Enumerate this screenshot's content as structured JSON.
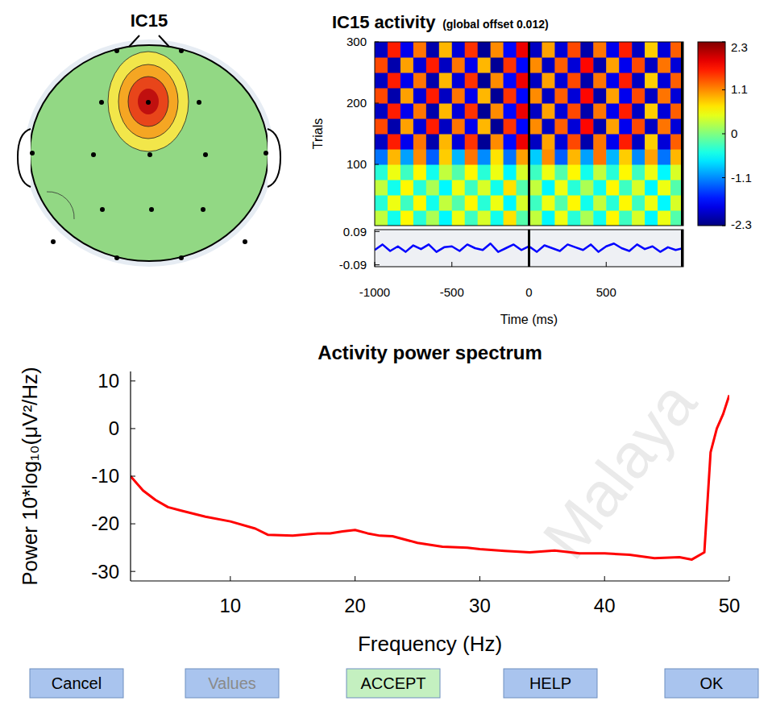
{
  "chart_data": [
    {
      "type": "topoplot",
      "title": "IC15"
    },
    {
      "type": "heatmap",
      "title": "IC15 activity",
      "subtitle": "(global offset 0.012)",
      "y_label": "Trials",
      "xlim": [
        -1000,
        1000
      ],
      "ylim": [
        0,
        300
      ],
      "yticks": [
        100,
        200,
        300
      ],
      "tick_labels": "y",
      "event_lines": [
        0,
        1000
      ],
      "color_range": [
        -2.3,
        2.3
      ],
      "color_ticks": [
        2.3,
        1.1,
        0,
        -1.1,
        -2.3
      ],
      "cells": [
        [
          0.3,
          -0.5,
          0.6,
          -0.4,
          0.2,
          -0.6,
          0.5,
          -0.3,
          0.4,
          -0.5,
          0.7,
          -0.2,
          0.3,
          -0.6,
          0.5,
          -0.4,
          0.2,
          -0.5,
          0.6,
          -0.3,
          0.4,
          -0.6,
          0.5,
          -0.2
        ],
        [
          -0.4,
          0.5,
          -0.3,
          0.6,
          -0.5,
          0.3,
          -0.2,
          0.6,
          -0.4,
          0.5,
          -0.6,
          0.4,
          -0.3,
          0.5,
          -0.2,
          0.6,
          -0.5,
          0.3,
          -0.4,
          0.6,
          -0.3,
          0.5,
          -0.6,
          0.4
        ],
        [
          0.3,
          -0.5,
          0.6,
          -0.4,
          0.2,
          -0.6,
          0.5,
          -0.3,
          0.4,
          -0.5,
          0.7,
          -0.2,
          0.3,
          -0.6,
          0.5,
          -0.4,
          0.2,
          -0.5,
          0.6,
          -0.3,
          0.4,
          -0.6,
          0.5,
          -0.2
        ],
        [
          -0.4,
          0.5,
          -0.3,
          0.6,
          -0.5,
          0.3,
          -0.2,
          0.6,
          -0.4,
          0.5,
          -0.6,
          0.4,
          -0.3,
          0.5,
          -0.2,
          0.6,
          -0.5,
          0.3,
          -0.4,
          0.6,
          -0.3,
          0.5,
          -0.6,
          0.4
        ],
        [
          -1.2,
          0.9,
          -1.0,
          1.1,
          -1.3,
          0.8,
          -0.9,
          1.2,
          -1.1,
          0.7,
          -1.2,
          1.0,
          -0.8,
          1.1,
          -1.3,
          0.9,
          -1.0,
          1.2,
          -0.9,
          0.8,
          -1.1,
          1.0,
          -1.2,
          0.9
        ],
        [
          -2.0,
          1.6,
          -1.8,
          1.2,
          -2.1,
          0.9,
          -1.9,
          1.5,
          -2.2,
          1.1,
          -1.7,
          1.8,
          -2.0,
          1.0,
          -1.9,
          1.4,
          -2.1,
          1.2,
          -1.8,
          1.6,
          -2.0,
          0.8,
          -1.9,
          1.3
        ],
        [
          1.4,
          -2.1,
          1.0,
          -1.9,
          1.6,
          -2.0,
          1.2,
          -1.8,
          0.9,
          -2.2,
          1.5,
          -1.7,
          1.1,
          -2.0,
          1.3,
          -1.9,
          1.7,
          -2.1,
          1.0,
          -1.8,
          1.4,
          -2.0,
          1.2,
          -1.9
        ],
        [
          -2.0,
          1.6,
          -1.8,
          1.2,
          -2.1,
          0.9,
          -1.9,
          1.5,
          -2.2,
          1.1,
          -1.7,
          1.8,
          -2.0,
          1.0,
          -1.9,
          1.4,
          -2.1,
          1.2,
          -1.8,
          1.6,
          -2.0,
          0.8,
          -1.9,
          1.3
        ],
        [
          1.4,
          -2.1,
          1.0,
          -1.9,
          1.6,
          -2.0,
          1.2,
          -1.8,
          0.9,
          -2.2,
          1.5,
          -1.7,
          1.1,
          -2.0,
          1.3,
          -1.9,
          1.7,
          -2.1,
          1.0,
          -1.8,
          1.4,
          -2.0,
          1.2,
          -1.9
        ],
        [
          -2.0,
          1.6,
          -1.8,
          1.2,
          -2.1,
          0.9,
          -1.9,
          1.5,
          -2.2,
          1.1,
          -1.7,
          1.8,
          -2.0,
          1.0,
          -1.9,
          1.4,
          -2.1,
          1.2,
          -1.8,
          1.6,
          -2.0,
          0.8,
          -1.9,
          1.3
        ],
        [
          1.4,
          -2.1,
          1.0,
          -1.9,
          1.6,
          -2.0,
          1.2,
          -1.8,
          0.9,
          -2.2,
          1.5,
          -1.7,
          1.1,
          -2.0,
          1.3,
          -1.9,
          1.7,
          -2.1,
          1.0,
          -1.8,
          1.4,
          -2.0,
          1.2,
          -1.9
        ],
        [
          -2.0,
          1.6,
          -1.8,
          1.2,
          -2.1,
          0.9,
          -1.9,
          1.5,
          -2.2,
          1.1,
          -1.7,
          1.8,
          -2.0,
          1.0,
          -1.9,
          1.4,
          -2.1,
          1.2,
          -1.8,
          1.6,
          -2.0,
          0.8,
          -1.9,
          1.3
        ]
      ]
    },
    {
      "type": "line",
      "x_label": "Time (ms)",
      "x": [
        -1000,
        -950,
        -900,
        -850,
        -800,
        -750,
        -700,
        -650,
        -600,
        -550,
        -500,
        -450,
        -400,
        -350,
        -300,
        -250,
        -200,
        -150,
        -100,
        -50,
        0,
        50,
        100,
        150,
        200,
        250,
        300,
        350,
        400,
        450,
        500,
        550,
        600,
        650,
        700,
        750,
        800,
        850,
        900,
        950,
        1000
      ],
      "series": [
        {
          "color": "#0000ff",
          "values": [
            -0.01,
            0.02,
            -0.015,
            0.01,
            -0.02,
            0.015,
            -0.005,
            0.02,
            -0.02,
            0.005,
            0.01,
            -0.015,
            0.02,
            0.0,
            -0.01,
            0.025,
            -0.02,
            0.0,
            0.02,
            -0.01,
            0.01,
            -0.02,
            0.015,
            0.0,
            -0.015,
            0.02,
            0.005,
            -0.01,
            0.02,
            -0.02,
            0.01,
            0.025,
            0.0,
            -0.015,
            0.02,
            -0.005,
            0.01,
            -0.02,
            0.005,
            -0.01,
            0.0
          ]
        }
      ],
      "xlim": [
        -1000,
        1000
      ],
      "ylim": [
        -0.1,
        0.1
      ],
      "xticks": [
        -1000,
        -500,
        0,
        500
      ],
      "yticks": [
        -0.09,
        0.09
      ],
      "event_lines": [
        0,
        1000
      ]
    },
    {
      "type": "line",
      "title": "Activity power spectrum",
      "x_label": "Frequency (Hz)",
      "y_label": "Power 10*log₁₀(μV²/Hz)",
      "x": [
        2,
        3,
        4,
        5,
        6,
        8,
        10,
        12,
        13,
        15,
        17,
        18,
        19,
        20,
        21,
        22,
        23,
        25,
        27,
        29,
        30,
        32,
        34,
        36,
        38,
        40,
        42,
        44,
        46,
        47,
        48,
        48.5,
        49,
        49.5,
        50
      ],
      "series": [
        {
          "color": "#ff0000",
          "values": [
            -10,
            -13,
            -15,
            -16.5,
            -17.2,
            -18.5,
            -19.5,
            -21,
            -22.3,
            -22.5,
            -22,
            -22,
            -21.6,
            -21.3,
            -22,
            -22.5,
            -22.6,
            -24,
            -24.8,
            -25,
            -25.3,
            -25.7,
            -26,
            -25.6,
            -26.2,
            -26.2,
            -26.5,
            -27.2,
            -27,
            -27.5,
            -26,
            -5,
            0,
            3,
            7
          ]
        }
      ],
      "xlim": [
        2,
        50
      ],
      "ylim": [
        -32,
        12
      ],
      "xticks": [
        10,
        20,
        30,
        40,
        50
      ],
      "yticks": [
        -30,
        -20,
        -10,
        0,
        10
      ]
    }
  ],
  "buttons": [
    {
      "label": "Cancel",
      "enabled": true,
      "color": "#a9c4ee"
    },
    {
      "label": "Values",
      "enabled": false,
      "color": "#a9c4ee"
    },
    {
      "label": "ACCEPT",
      "enabled": true,
      "color": "#c4f0c0"
    },
    {
      "label": "HELP",
      "enabled": true,
      "color": "#a9c4ee"
    },
    {
      "label": "OK",
      "enabled": true,
      "color": "#a9c4ee"
    }
  ],
  "watermark": "Malaya"
}
